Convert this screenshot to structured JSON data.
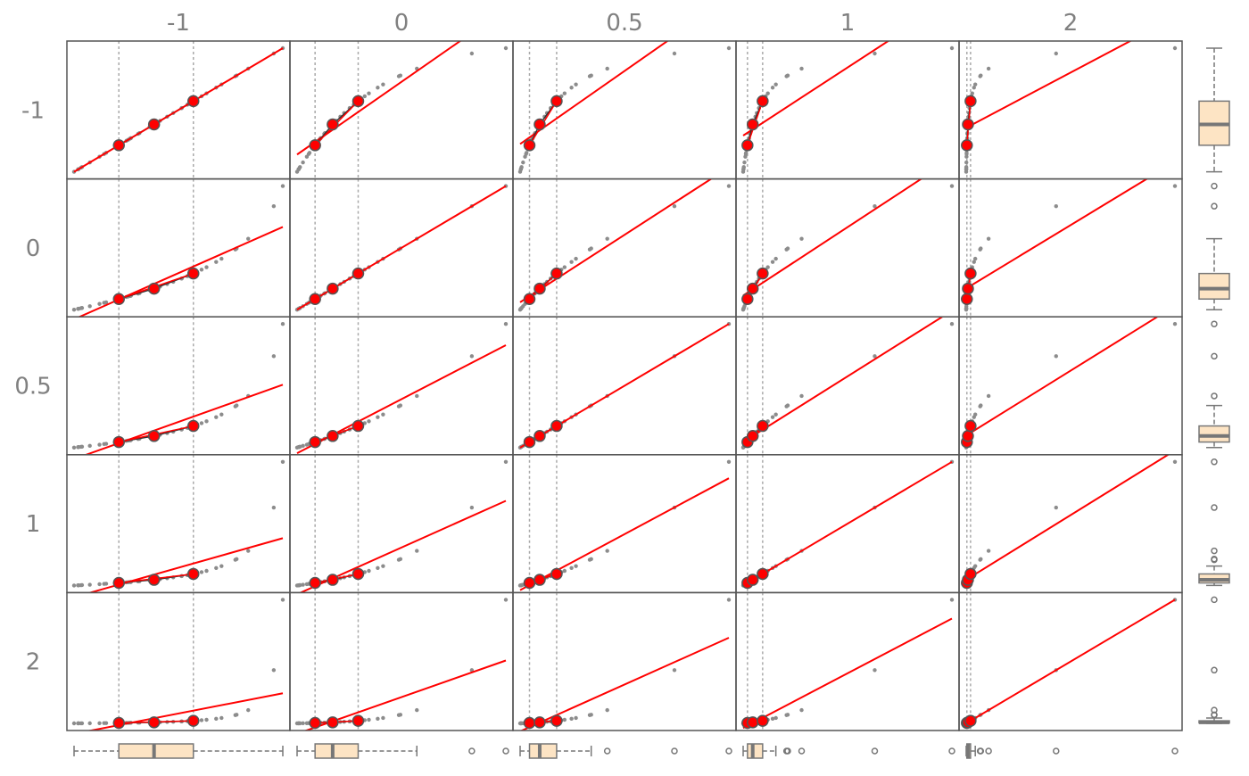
{
  "chart_data": {
    "type": "scatter",
    "title": "",
    "description_kind": "Box-Cox power transformation scatterplot matrix",
    "powers": [
      "-1",
      "0",
      "0.5",
      "1",
      "2"
    ],
    "column_labels": [
      "-1",
      "0",
      "0.5",
      "1",
      "2"
    ],
    "row_labels": [
      "-1",
      "0",
      "0.5",
      "1",
      "2"
    ],
    "colors": {
      "points": "#8c8c8c",
      "fit_line": "#ff0000",
      "quartile_line": "#333333",
      "quartile_point_fill": "#ff0000",
      "quartile_point_stroke": "#555555",
      "guide_line": "#a9a9a9",
      "box_fill": "#fde4c4",
      "box_stroke": "#777777",
      "frame": "#555555",
      "label": "#808080"
    },
    "grid": false,
    "legend": "none"
  }
}
